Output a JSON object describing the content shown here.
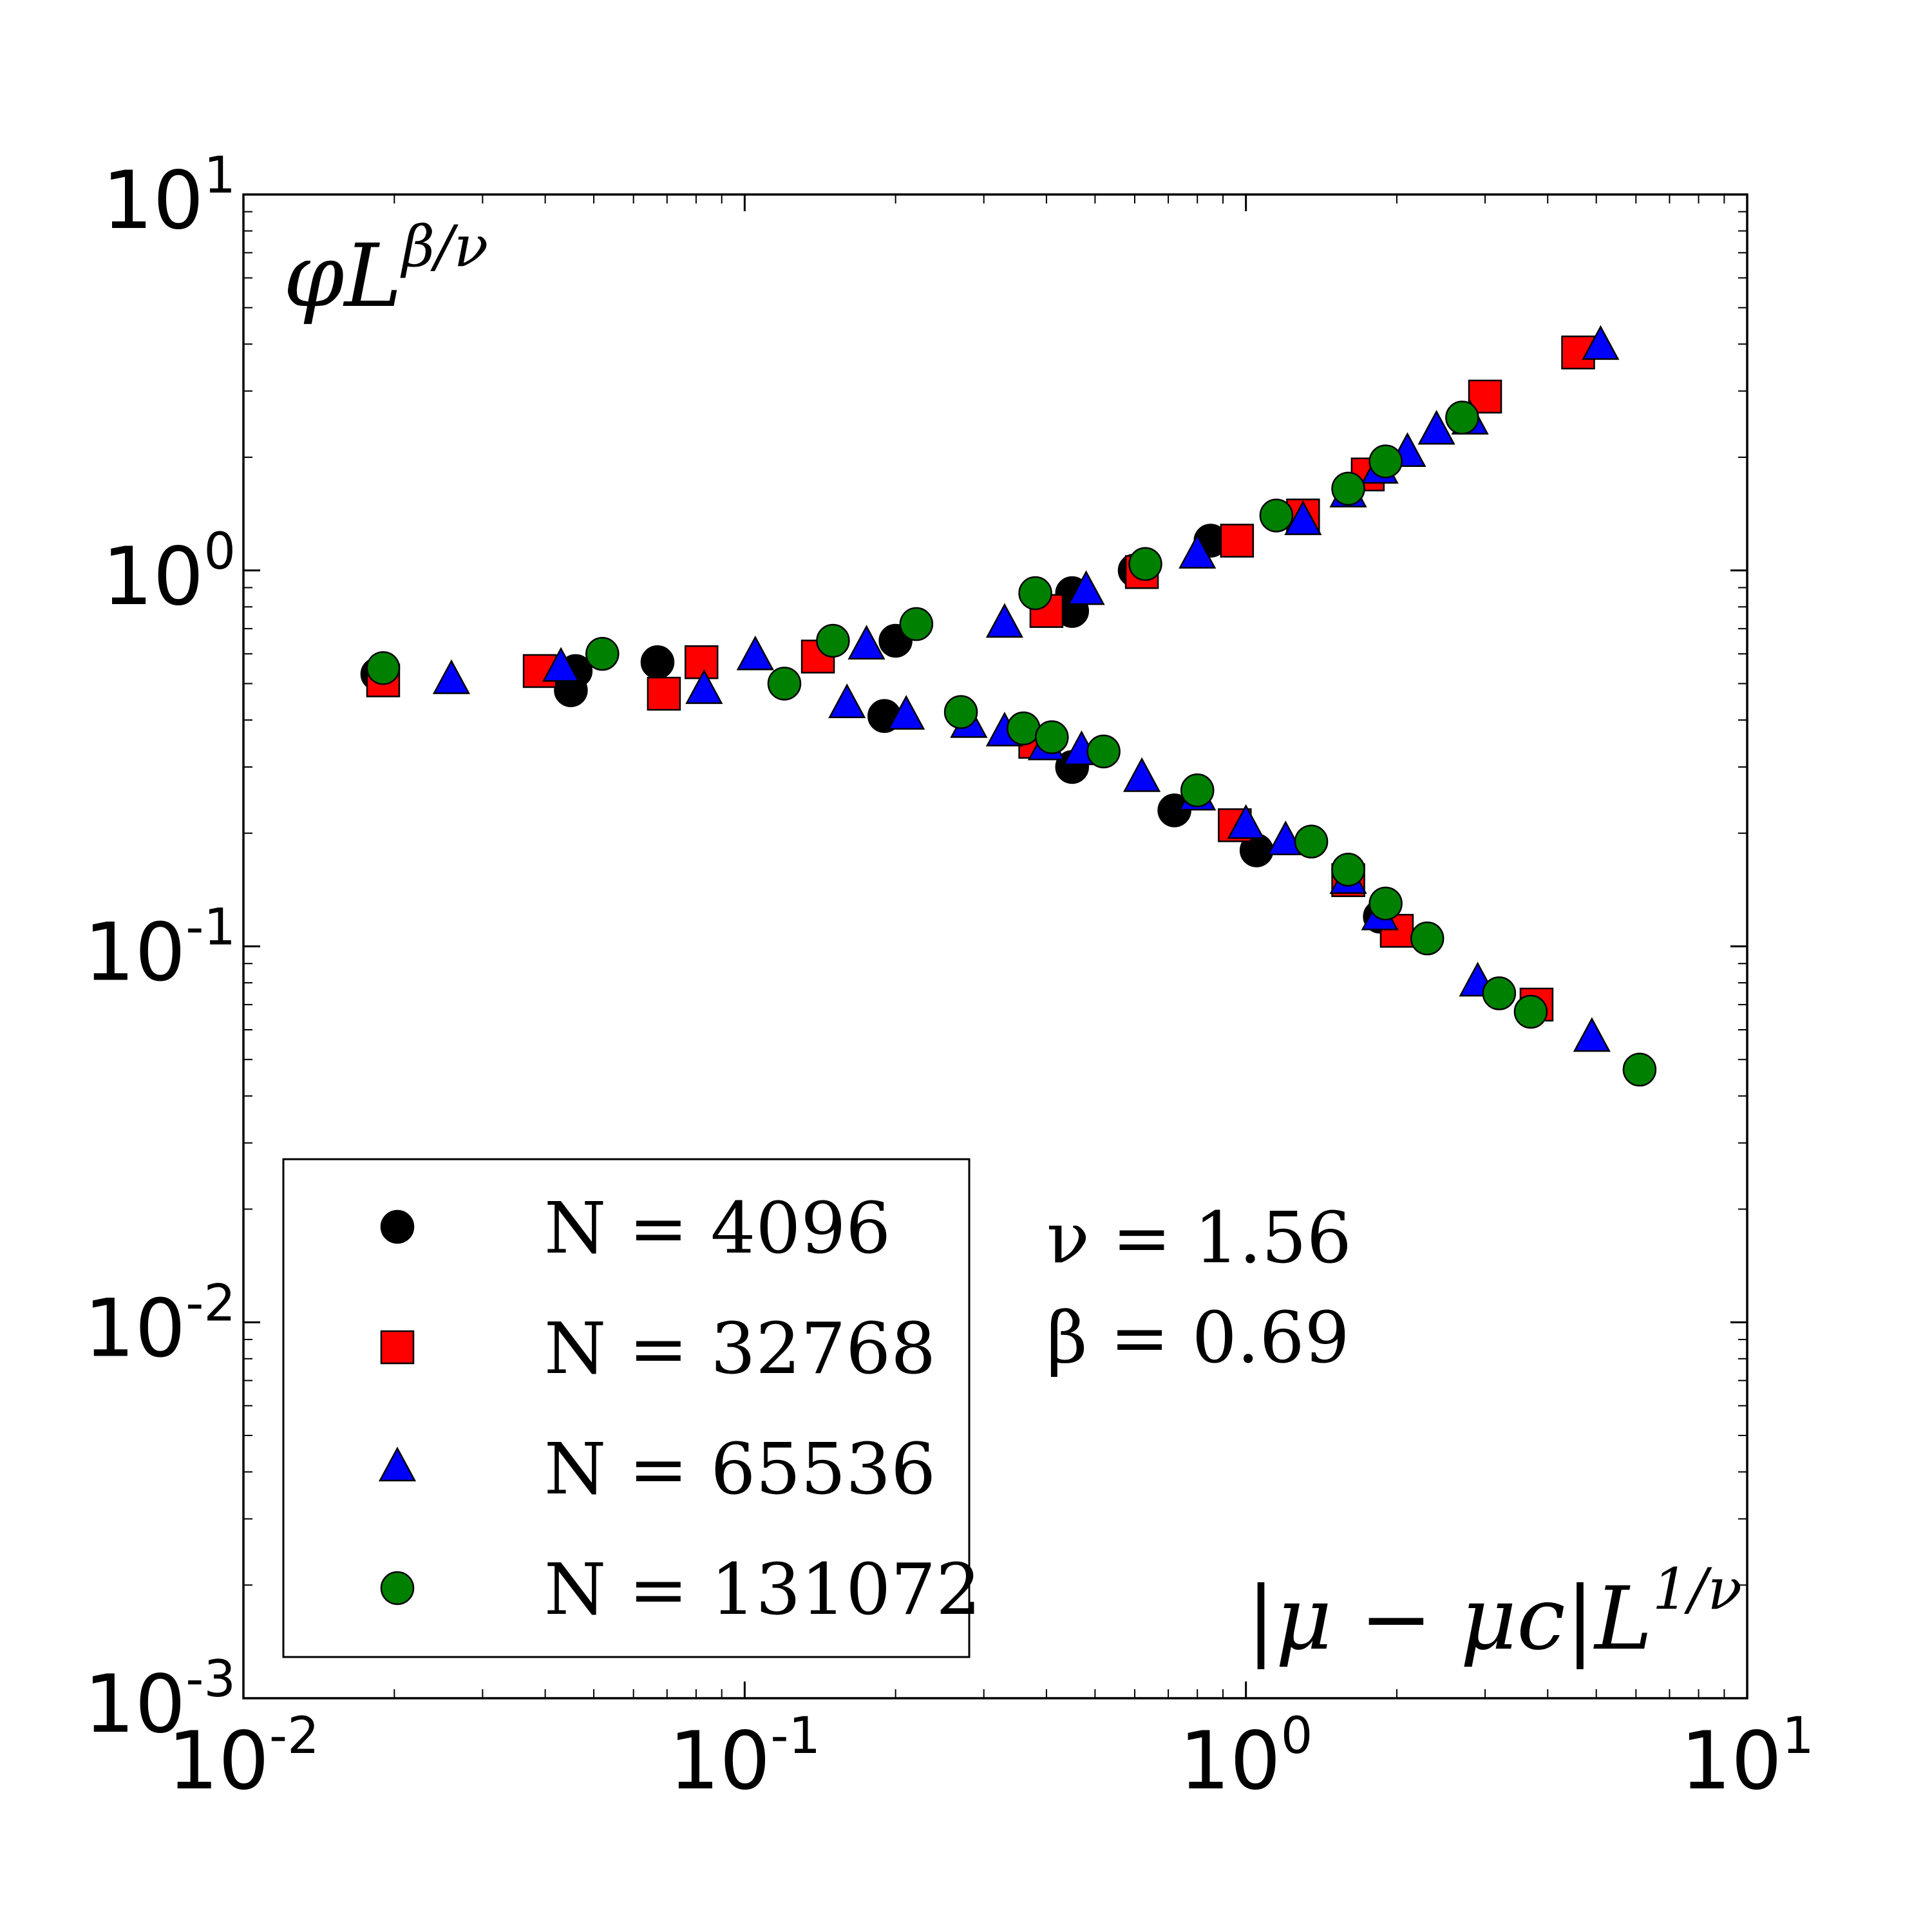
{
  "chart_data": {
    "type": "scatter",
    "xscale": "log",
    "yscale": "log",
    "xlim": [
      0.01,
      10
    ],
    "ylim": [
      0.001,
      10
    ],
    "xticks": [
      {
        "base": "10",
        "exp": "-2"
      },
      {
        "base": "10",
        "exp": "-1"
      },
      {
        "base": "10",
        "exp": "0"
      },
      {
        "base": "10",
        "exp": "1"
      }
    ],
    "yticks": [
      {
        "base": "10",
        "exp": "-3"
      },
      {
        "base": "10",
        "exp": "-2"
      },
      {
        "base": "10",
        "exp": "-1"
      },
      {
        "base": "10",
        "exp": "0"
      },
      {
        "base": "10",
        "exp": "1"
      }
    ],
    "ylabel": {
      "main": "φL",
      "sup": "β/ν"
    },
    "xlabel": {
      "main": "|μ − μc|L",
      "sup": "1/ν"
    },
    "annotations": [
      "ν = 1.56",
      "β = 0.69"
    ],
    "legend_location": "lower-left",
    "series": [
      {
        "name": "N = 4096",
        "marker": "circle",
        "color": "#000000",
        "points": [
          [
            0.0185,
            0.53
          ],
          [
            0.045,
            0.48
          ],
          [
            0.046,
            0.54
          ],
          [
            0.067,
            0.57
          ],
          [
            0.19,
            0.41
          ],
          [
            0.2,
            0.65
          ],
          [
            0.45,
            0.3
          ],
          [
            0.45,
            0.78
          ],
          [
            0.45,
            0.87
          ],
          [
            0.72,
            0.23
          ],
          [
            0.6,
            1.0
          ],
          [
            0.85,
            1.2
          ],
          [
            1.05,
            0.18
          ],
          [
            1.85,
            0.12
          ]
        ]
      },
      {
        "name": "N = 32768",
        "marker": "square",
        "color": "#ff0000",
        "points": [
          [
            0.019,
            0.51
          ],
          [
            0.039,
            0.54
          ],
          [
            0.069,
            0.47
          ],
          [
            0.082,
            0.57
          ],
          [
            0.14,
            0.59
          ],
          [
            0.38,
            0.35
          ],
          [
            0.4,
            0.78
          ],
          [
            0.62,
            0.99
          ],
          [
            0.95,
            0.21
          ],
          [
            0.96,
            1.2
          ],
          [
            1.3,
            1.4
          ],
          [
            1.6,
            0.15
          ],
          [
            1.75,
            1.8
          ],
          [
            2.0,
            0.11
          ],
          [
            3.0,
            2.9
          ],
          [
            3.8,
            0.07
          ],
          [
            4.6,
            3.8
          ]
        ]
      },
      {
        "name": "N = 65536",
        "marker": "triangle",
        "color": "#0000ff",
        "points": [
          [
            0.026,
            0.51
          ],
          [
            0.043,
            0.55
          ],
          [
            0.083,
            0.48
          ],
          [
            0.105,
            0.59
          ],
          [
            0.16,
            0.44
          ],
          [
            0.175,
            0.63
          ],
          [
            0.21,
            0.41
          ],
          [
            0.28,
            0.39
          ],
          [
            0.33,
            0.37
          ],
          [
            0.33,
            0.72
          ],
          [
            0.4,
            0.34
          ],
          [
            0.47,
            0.33
          ],
          [
            0.48,
            0.88
          ],
          [
            0.62,
            0.28
          ],
          [
            0.8,
            0.25
          ],
          [
            0.8,
            1.1
          ],
          [
            1.0,
            0.21
          ],
          [
            1.2,
            0.19
          ],
          [
            1.3,
            1.35
          ],
          [
            1.6,
            0.15
          ],
          [
            1.6,
            1.6
          ],
          [
            1.85,
            0.12
          ],
          [
            1.85,
            1.85
          ],
          [
            2.1,
            2.05
          ],
          [
            2.4,
            2.35
          ],
          [
            2.8,
            2.5
          ],
          [
            2.9,
            0.08
          ],
          [
            4.9,
            0.057
          ],
          [
            5.1,
            3.95
          ]
        ]
      },
      {
        "name": "N = 131072",
        "marker": "circle",
        "color": "#008000",
        "points": [
          [
            0.019,
            0.55
          ],
          [
            0.052,
            0.6
          ],
          [
            0.12,
            0.5
          ],
          [
            0.15,
            0.65
          ],
          [
            0.22,
            0.72
          ],
          [
            0.27,
            0.42
          ],
          [
            0.36,
            0.38
          ],
          [
            0.38,
            0.87
          ],
          [
            0.41,
            0.36
          ],
          [
            0.52,
            0.33
          ],
          [
            0.63,
            1.04
          ],
          [
            0.8,
            0.26
          ],
          [
            1.15,
            1.4
          ],
          [
            1.35,
            0.19
          ],
          [
            1.6,
            0.16
          ],
          [
            1.6,
            1.65
          ],
          [
            1.9,
            0.13
          ],
          [
            1.9,
            1.95
          ],
          [
            2.3,
            0.105
          ],
          [
            2.7,
            2.55
          ],
          [
            3.2,
            0.075
          ],
          [
            3.7,
            0.067
          ],
          [
            6.1,
            0.047
          ]
        ]
      }
    ]
  }
}
